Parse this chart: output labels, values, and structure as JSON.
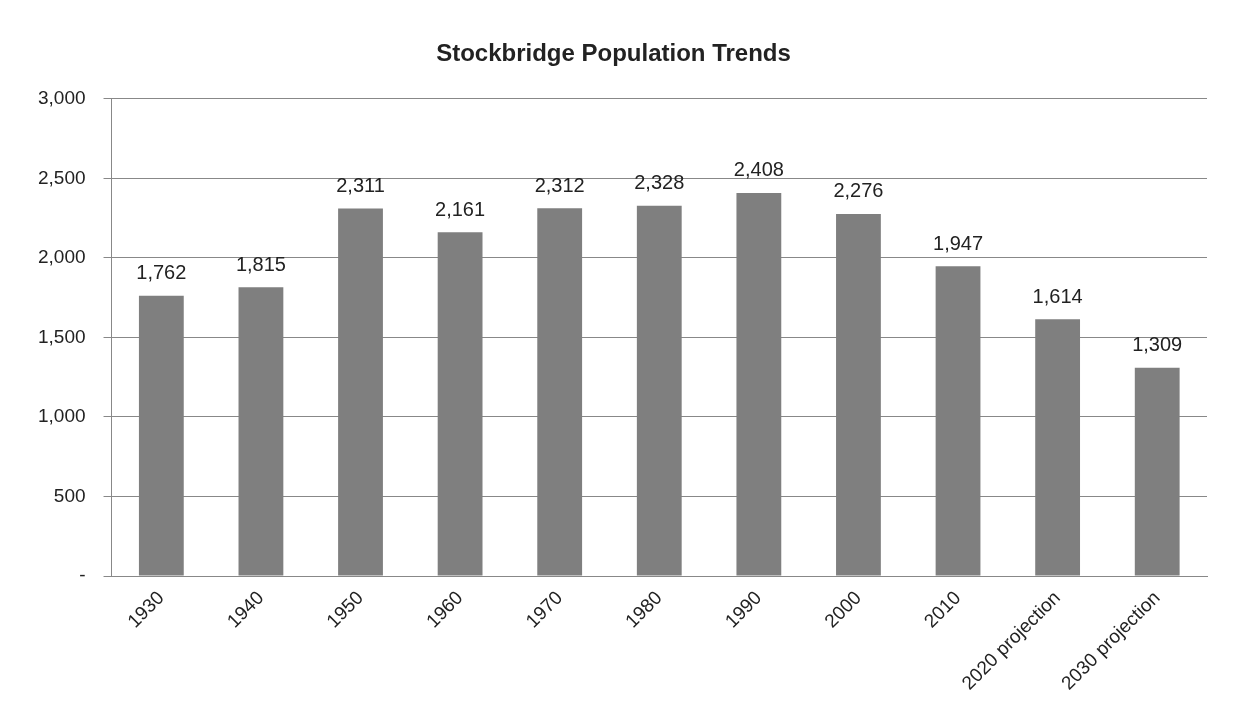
{
  "chart_data": {
    "type": "bar",
    "title": "Stockbridge Population Trends",
    "categories": [
      "1930",
      "1940",
      "1950",
      "1960",
      "1970",
      "1980",
      "1990",
      "2000",
      "2010",
      "2020 projection",
      "2030 projection"
    ],
    "values": [
      1762,
      1815,
      2311,
      2161,
      2312,
      2328,
      2408,
      2276,
      1947,
      1614,
      1309
    ],
    "value_labels": [
      "1,762",
      "1,815",
      "2,311",
      "2,161",
      "2,312",
      "2,328",
      "2,408",
      "2,276",
      "1,947",
      "1,614",
      "1,309"
    ],
    "color": "#7f7f7f",
    "ylim": [
      0,
      3000
    ],
    "yticks": [
      {
        "value": 0,
        "label": "-"
      },
      {
        "value": 500,
        "label": "500"
      },
      {
        "value": 1000,
        "label": "1,000"
      },
      {
        "value": 1500,
        "label": "1,500"
      },
      {
        "value": 2000,
        "label": "2,000"
      },
      {
        "value": 2500,
        "label": "2,500"
      },
      {
        "value": 3000,
        "label": "3,000"
      }
    ],
    "grid": "y"
  }
}
